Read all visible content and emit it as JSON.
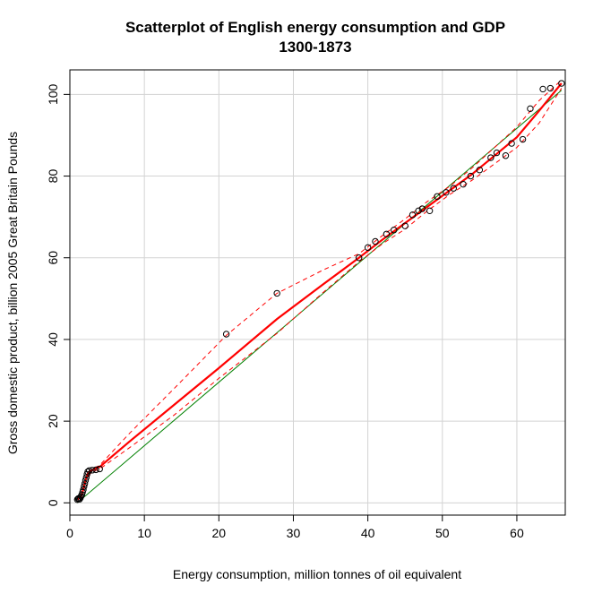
{
  "chart_data": {
    "type": "scatter",
    "title_lines": [
      "Scatterplot of English energy consumption and GDP",
      "1300-1873"
    ],
    "xlabel": "Energy consumption, million tonnes of oil equivalent",
    "ylabel": "Gross domestic product, billion 2005 Great Britain Pounds",
    "xlim": [
      0,
      66.5
    ],
    "ylim": [
      -3,
      106
    ],
    "x_ticks": [
      0,
      10,
      20,
      30,
      40,
      50,
      60
    ],
    "y_ticks": [
      0,
      20,
      40,
      60,
      80,
      100
    ],
    "grid": true,
    "colors": {
      "points": "#000000",
      "fit_line": "#008000",
      "smooth_line": "#ff0000",
      "grid": "#d3d3d3",
      "frame": "#000000"
    },
    "points": [
      {
        "x": 1.0,
        "y": 0.8
      },
      {
        "x": 1.1,
        "y": 1.0
      },
      {
        "x": 1.2,
        "y": 1.1
      },
      {
        "x": 1.3,
        "y": 0.9
      },
      {
        "x": 1.4,
        "y": 1.2
      },
      {
        "x": 1.5,
        "y": 1.6
      },
      {
        "x": 1.6,
        "y": 2.0
      },
      {
        "x": 1.7,
        "y": 2.6
      },
      {
        "x": 1.8,
        "y": 3.2
      },
      {
        "x": 1.9,
        "y": 4.0
      },
      {
        "x": 2.0,
        "y": 4.7
      },
      {
        "x": 2.1,
        "y": 5.5
      },
      {
        "x": 2.2,
        "y": 6.2
      },
      {
        "x": 2.3,
        "y": 7.0
      },
      {
        "x": 2.4,
        "y": 7.6
      },
      {
        "x": 2.6,
        "y": 7.9
      },
      {
        "x": 3.0,
        "y": 8.0
      },
      {
        "x": 3.5,
        "y": 8.1
      },
      {
        "x": 4.0,
        "y": 8.3
      },
      {
        "x": 21.0,
        "y": 41.3
      },
      {
        "x": 27.8,
        "y": 51.3
      },
      {
        "x": 38.8,
        "y": 60.0
      },
      {
        "x": 40.0,
        "y": 62.5
      },
      {
        "x": 41.0,
        "y": 64.0
      },
      {
        "x": 42.5,
        "y": 65.8
      },
      {
        "x": 43.5,
        "y": 66.8
      },
      {
        "x": 45.0,
        "y": 67.8
      },
      {
        "x": 46.0,
        "y": 70.5
      },
      {
        "x": 46.8,
        "y": 71.5
      },
      {
        "x": 47.3,
        "y": 72.0
      },
      {
        "x": 48.3,
        "y": 71.5
      },
      {
        "x": 49.3,
        "y": 75.0
      },
      {
        "x": 50.5,
        "y": 76.0
      },
      {
        "x": 51.5,
        "y": 77.0
      },
      {
        "x": 52.8,
        "y": 78.0
      },
      {
        "x": 53.8,
        "y": 80.0
      },
      {
        "x": 55.0,
        "y": 81.5
      },
      {
        "x": 56.5,
        "y": 84.5
      },
      {
        "x": 57.3,
        "y": 85.7
      },
      {
        "x": 58.5,
        "y": 85.0
      },
      {
        "x": 59.3,
        "y": 88.0
      },
      {
        "x": 60.8,
        "y": 89.0
      },
      {
        "x": 61.8,
        "y": 96.5
      },
      {
        "x": 63.5,
        "y": 101.3
      },
      {
        "x": 64.5,
        "y": 101.5
      },
      {
        "x": 66.0,
        "y": 102.7
      }
    ],
    "fit_line": [
      {
        "x": 1.0,
        "y": 0.0
      },
      {
        "x": 66.0,
        "y": 101.0
      }
    ],
    "smooth_line": [
      {
        "x": 1.0,
        "y": 0.8
      },
      {
        "x": 1.5,
        "y": 1.5
      },
      {
        "x": 1.8,
        "y": 3.3
      },
      {
        "x": 2.1,
        "y": 5.6
      },
      {
        "x": 2.4,
        "y": 7.2
      },
      {
        "x": 3.0,
        "y": 8.0
      },
      {
        "x": 4.0,
        "y": 8.8
      },
      {
        "x": 8.0,
        "y": 15.0
      },
      {
        "x": 14.0,
        "y": 24.0
      },
      {
        "x": 20.0,
        "y": 33.0
      },
      {
        "x": 27.8,
        "y": 45.0
      },
      {
        "x": 34.0,
        "y": 53.5
      },
      {
        "x": 38.8,
        "y": 60.0
      },
      {
        "x": 42.0,
        "y": 64.5
      },
      {
        "x": 45.0,
        "y": 68.5
      },
      {
        "x": 48.0,
        "y": 72.5
      },
      {
        "x": 51.0,
        "y": 76.5
      },
      {
        "x": 54.0,
        "y": 80.5
      },
      {
        "x": 57.0,
        "y": 85.0
      },
      {
        "x": 60.0,
        "y": 89.5
      },
      {
        "x": 63.0,
        "y": 96.0
      },
      {
        "x": 66.0,
        "y": 102.7
      }
    ],
    "smooth_upper": [
      {
        "x": 2.4,
        "y": 7.5
      },
      {
        "x": 3.0,
        "y": 8.3
      },
      {
        "x": 4.0,
        "y": 9.2
      },
      {
        "x": 8.0,
        "y": 17.0
      },
      {
        "x": 14.0,
        "y": 28.0
      },
      {
        "x": 21.0,
        "y": 41.0
      },
      {
        "x": 27.8,
        "y": 51.3
      },
      {
        "x": 34.0,
        "y": 57.0
      },
      {
        "x": 38.8,
        "y": 61.0
      },
      {
        "x": 42.0,
        "y": 65.5
      },
      {
        "x": 45.0,
        "y": 69.5
      },
      {
        "x": 48.0,
        "y": 73.8
      },
      {
        "x": 51.0,
        "y": 77.5
      },
      {
        "x": 54.0,
        "y": 82.0
      },
      {
        "x": 57.0,
        "y": 87.0
      },
      {
        "x": 60.0,
        "y": 92.0
      },
      {
        "x": 63.0,
        "y": 98.5
      },
      {
        "x": 66.0,
        "y": 103.5
      }
    ],
    "smooth_lower": [
      {
        "x": 2.4,
        "y": 6.5
      },
      {
        "x": 3.0,
        "y": 7.6
      },
      {
        "x": 4.0,
        "y": 8.3
      },
      {
        "x": 8.0,
        "y": 13.5
      },
      {
        "x": 14.0,
        "y": 21.5
      },
      {
        "x": 20.0,
        "y": 30.5
      },
      {
        "x": 27.8,
        "y": 41.5
      },
      {
        "x": 34.0,
        "y": 51.5
      },
      {
        "x": 38.8,
        "y": 59.0
      },
      {
        "x": 42.0,
        "y": 63.5
      },
      {
        "x": 45.0,
        "y": 67.0
      },
      {
        "x": 48.0,
        "y": 71.5
      },
      {
        "x": 51.0,
        "y": 75.5
      },
      {
        "x": 54.0,
        "y": 79.0
      },
      {
        "x": 57.0,
        "y": 83.0
      },
      {
        "x": 60.0,
        "y": 87.0
      },
      {
        "x": 63.0,
        "y": 93.0
      },
      {
        "x": 66.0,
        "y": 101.5
      }
    ]
  }
}
